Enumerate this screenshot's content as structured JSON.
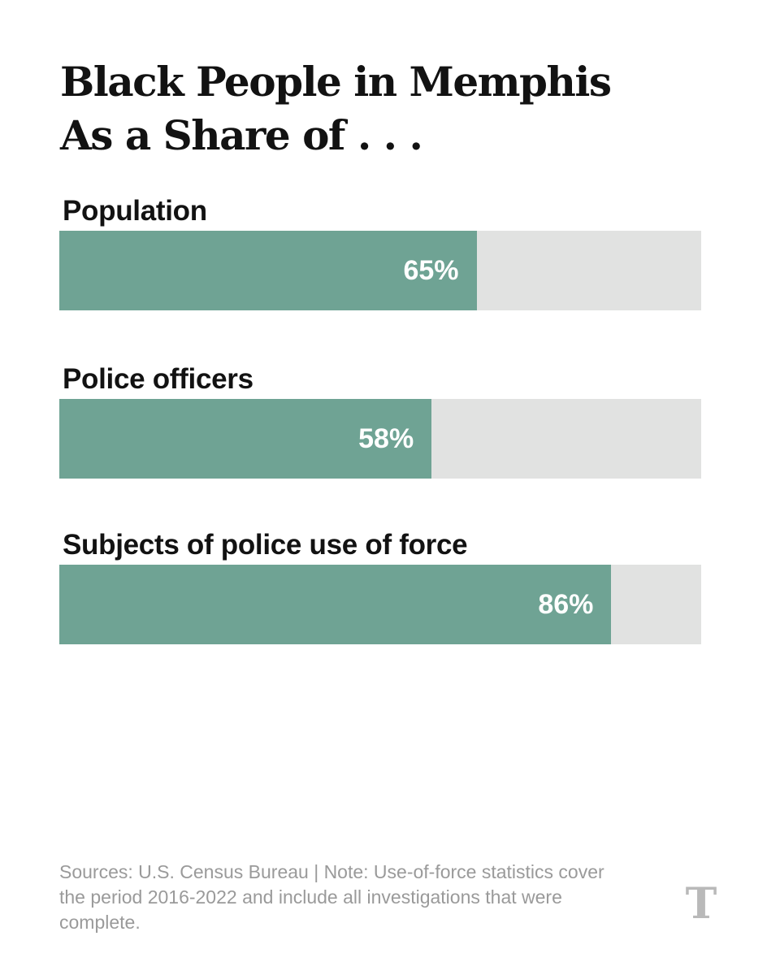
{
  "chart_data": {
    "type": "bar",
    "orientation": "horizontal",
    "title": [
      "Black People in Memphis",
      "As a Share of . . ."
    ],
    "categories": [
      "Population",
      "Police officers",
      "Subjects of police use of force"
    ],
    "values": [
      65,
      58,
      86
    ],
    "value_labels": [
      "65%",
      "58%",
      "86%"
    ],
    "xlim": [
      0,
      100
    ],
    "fill_color": "#6fa394",
    "track_color": "#e1e2e1",
    "note": "Sources: U.S. Census Bureau | Note: Use-of-force statistics cover the period 2016-2022 and include all investigations that were complete."
  },
  "logo": "T"
}
